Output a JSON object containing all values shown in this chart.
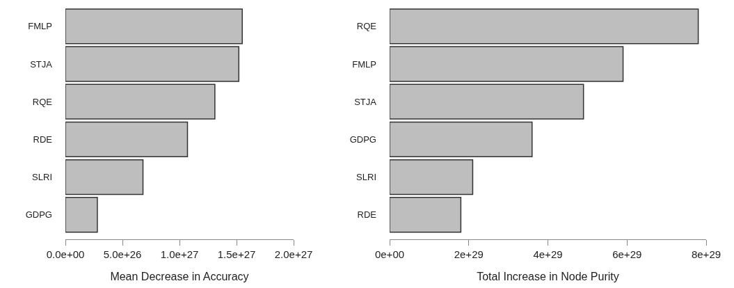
{
  "chart_data": [
    {
      "type": "bar",
      "orientation": "horizontal",
      "categories": [
        "FMLP",
        "STJA",
        "RQE",
        "RDE",
        "SLRI",
        "GDPG"
      ],
      "values": [
        1.55e+27,
        1.52e+27,
        1.31e+27,
        1.07e+27,
        6.8e+26,
        2.8e+26
      ],
      "color": "#bebebe",
      "xlabel": "Mean Decrease in Accuracy",
      "xlim": [
        0,
        2e+27
      ],
      "xticks": [
        {
          "value": 0,
          "label": "0.0e+00"
        },
        {
          "value": 5e+26,
          "label": "5.0e+26"
        },
        {
          "value": 1e+27,
          "label": "1.0e+27"
        },
        {
          "value": 1.5e+27,
          "label": "1.5e+27"
        },
        {
          "value": 2e+27,
          "label": "2.0e+27"
        }
      ],
      "grid": false
    },
    {
      "type": "bar",
      "orientation": "horizontal",
      "categories": [
        "RQE",
        "FMLP",
        "STJA",
        "GDPG",
        "SLRI",
        "RDE"
      ],
      "values": [
        7.8e+29,
        5.9e+29,
        4.9e+29,
        3.6e+29,
        2.1e+29,
        1.8e+29
      ],
      "color": "#bebebe",
      "xlabel": "Total Increase in Node Purity",
      "xlim": [
        0,
        8e+29
      ],
      "xticks": [
        {
          "value": 0,
          "label": "0e+00"
        },
        {
          "value": 2e+29,
          "label": "2e+29"
        },
        {
          "value": 4e+29,
          "label": "4e+29"
        },
        {
          "value": 6e+29,
          "label": "6e+29"
        },
        {
          "value": 8e+29,
          "label": "8e+29"
        }
      ],
      "grid": false
    }
  ]
}
